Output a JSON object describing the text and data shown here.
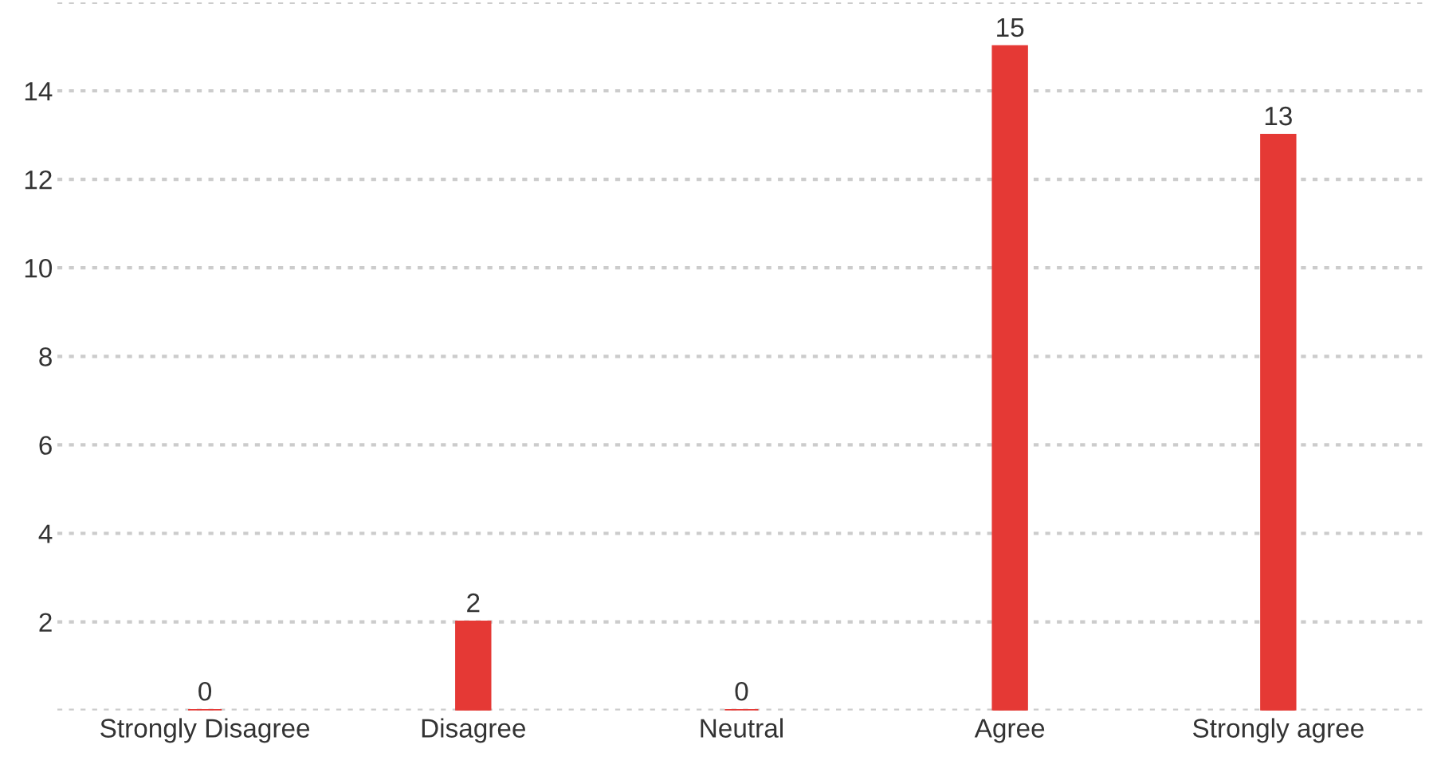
{
  "chart_data": {
    "type": "bar",
    "categories": [
      "Strongly Disagree",
      "Disagree",
      "Neutral",
      "Agree",
      "Strongly agree"
    ],
    "values": [
      0,
      2,
      0,
      15,
      13
    ],
    "color": "#e53935",
    "ylim": [
      0,
      16
    ],
    "yticks": [
      {
        "value": 0,
        "label": null
      },
      2,
      4,
      6,
      8,
      10,
      12,
      14,
      {
        "value": 16,
        "label": null
      }
    ],
    "grid": "y",
    "data_labels": true,
    "legend": false
  }
}
